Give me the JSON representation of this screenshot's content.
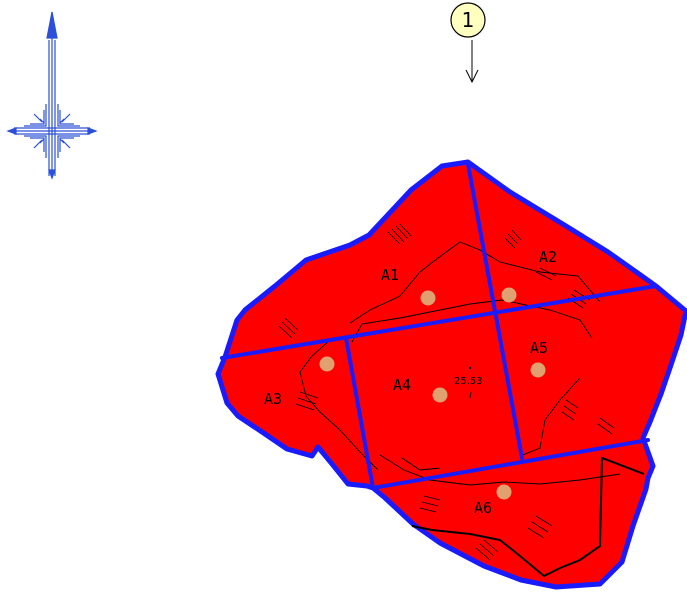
{
  "view_marker": {
    "number": "1"
  },
  "elevation": {
    "label": "25.53"
  },
  "zones": [
    {
      "id": "a1",
      "label": "A1"
    },
    {
      "id": "a2",
      "label": "A2"
    },
    {
      "id": "a3",
      "label": "A3"
    },
    {
      "id": "a4",
      "label": "A4"
    },
    {
      "id": "a5",
      "label": "A5"
    },
    {
      "id": "a6",
      "label": "A6"
    }
  ],
  "colors": {
    "fill": "#ff0000",
    "boundary": "#1a1aff",
    "compass": "#2a4fd8",
    "point": "#e0a070",
    "marker_fill": "#ffffc0",
    "contour": "#000000"
  },
  "icons": {
    "compass": "north-arrow-compass-rose-icon",
    "view_marker": "view-direction-marker-icon"
  }
}
